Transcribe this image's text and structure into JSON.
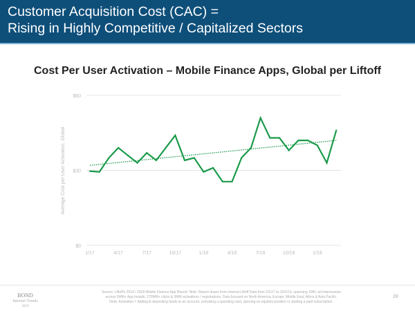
{
  "header": {
    "line1": "Customer Acquisition Cost (CAC) =",
    "line2": "Rising in Highly Competitive / Capitalized Sectors"
  },
  "chart_data": {
    "type": "line",
    "title": "Cost Per User Activation – Mobile Finance Apps, Global per Liftoff",
    "xlabel": "",
    "ylabel": "Average Cost per User Activation, Global",
    "ylim": [
      0,
      60
    ],
    "yticks": [
      {
        "value": 0,
        "label": "$0"
      },
      {
        "value": 30,
        "label": "$30"
      },
      {
        "value": 60,
        "label": "$60"
      }
    ],
    "xticks": [
      {
        "index": 0,
        "label": "1/17"
      },
      {
        "index": 3,
        "label": "4/17"
      },
      {
        "index": 6,
        "label": "7/17"
      },
      {
        "index": 9,
        "label": "10/17"
      },
      {
        "index": 12,
        "label": "1/18"
      },
      {
        "index": 15,
        "label": "4/18"
      },
      {
        "index": 18,
        "label": "7/18"
      },
      {
        "index": 21,
        "label": "10/18"
      },
      {
        "index": 24,
        "label": "1/19"
      }
    ],
    "grid": true,
    "series": [
      {
        "name": "Cost per User Activation",
        "color": "#1a9a4a",
        "values": [
          29.7,
          29.4,
          35,
          39,
          36,
          33,
          37,
          34,
          39,
          44,
          34,
          35,
          29.4,
          31,
          25.5,
          25.5,
          35,
          39,
          51,
          43,
          43,
          38,
          42,
          42,
          40,
          33,
          46
        ]
      },
      {
        "name": "Trend",
        "color": "#1a9a4a",
        "style": "dotted",
        "start": 32,
        "end": 42
      }
    ]
  },
  "footer": {
    "logo": "BOND",
    "logo_sub": "Internet Trends",
    "logo_year": "2019",
    "source_line1": "Source: Liftoff's 2019 / 2018 Mobile Finance App Report. Note: Report draws from internal Liftoff Data from 2/1/17 to 3/31/19, spanning 19B+ ad impressions",
    "source_line2": "across 5MM+ App installs, 270MM+ clicks & 3MM activations / registrations. Data focused on North America, Europe, Middle East, Africa & Asia Pacific.",
    "source_line3": "Note: Activation = Adding & depositing funds to an account, activating a spending card, opening an equities position or starting a paid subscription.",
    "page_number": "28"
  }
}
